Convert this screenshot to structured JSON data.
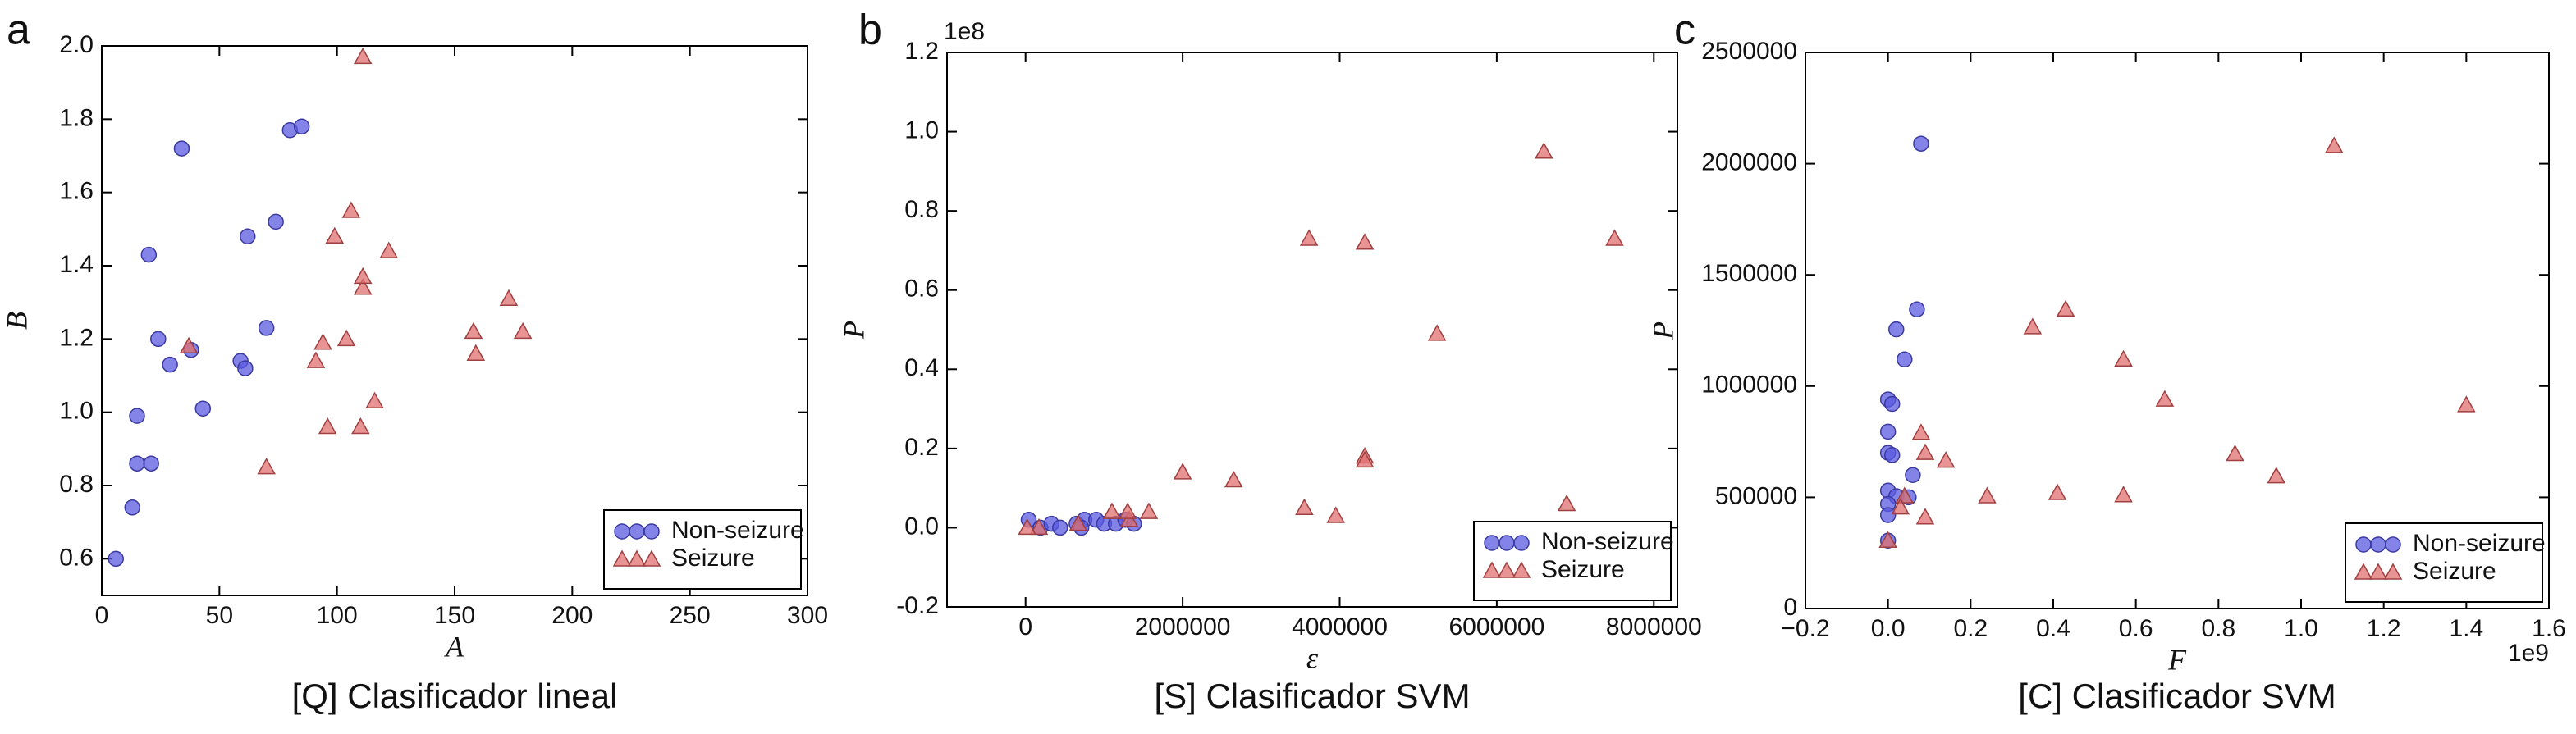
{
  "chart_data": [
    {
      "type": "scatter",
      "panel_label": "a",
      "caption": "[Q] Clasificador lineal",
      "xlabel": "A",
      "ylabel": "B",
      "xlim": [
        0,
        300
      ],
      "ylim": [
        0.5,
        2.0
      ],
      "xticks": [
        0,
        50,
        100,
        150,
        200,
        250,
        300
      ],
      "yticks": [
        0.6,
        0.8,
        {
          "value": 1,
          "label": "1.0"
        },
        1.2,
        1.4,
        1.6,
        1.8,
        {
          "value": 2,
          "label": "2.0"
        }
      ],
      "legend": "lower right",
      "series": [
        {
          "name": "Non-seizure",
          "color": "#5a5ae0",
          "marker": "circle",
          "x": [
            6,
            13,
            15,
            15,
            21,
            20,
            24,
            29,
            34,
            38,
            43,
            59,
            61,
            62,
            70,
            74,
            80,
            85
          ],
          "y": [
            0.6,
            0.74,
            0.86,
            0.99,
            0.86,
            1.43,
            1.2,
            1.13,
            1.72,
            1.17,
            1.01,
            1.14,
            1.12,
            1.48,
            1.23,
            1.52,
            1.77,
            1.78
          ]
        },
        {
          "name": "Seizure",
          "color": "#e07070",
          "marker": "triangle",
          "x": [
            37,
            70,
            91,
            94,
            96,
            99,
            104,
            106,
            110,
            111,
            111,
            111,
            116,
            122,
            158,
            159,
            173,
            179
          ],
          "y": [
            1.18,
            0.85,
            1.14,
            1.19,
            0.96,
            1.48,
            1.2,
            1.55,
            0.96,
            1.97,
            1.34,
            1.37,
            1.03,
            1.44,
            1.22,
            1.16,
            1.31,
            1.22
          ]
        }
      ]
    },
    {
      "type": "scatter",
      "panel_label": "b",
      "caption": "[S] Clasificador SVM",
      "xlabel": "ε",
      "ylabel": "P",
      "y_offset_label": "1e8",
      "xlim": [
        -1000000,
        8300000
      ],
      "ylim": [
        -0.2,
        1.2
      ],
      "xticks": [
        0,
        2000000,
        4000000,
        6000000,
        8000000
      ],
      "yticks": [
        -0.2,
        {
          "value": 0,
          "label": "0.0"
        },
        0.2,
        0.4,
        0.6,
        0.8,
        {
          "value": 1,
          "label": "1.0"
        },
        1.2
      ],
      "legend": "lower right",
      "series": [
        {
          "name": "Non-seizure",
          "color": "#5a5ae0",
          "marker": "circle",
          "x": [
            40000,
            190000,
            330000,
            440000,
            650000,
            750000,
            900000,
            1000000,
            1150000,
            1270000,
            1380000,
            710000
          ],
          "y": [
            0.02,
            0.0,
            0.01,
            0.0,
            0.01,
            0.02,
            0.02,
            0.01,
            0.01,
            0.02,
            0.01,
            0.0
          ]
        },
        {
          "name": "Seizure",
          "color": "#e07070",
          "marker": "triangle",
          "x": [
            3610000,
            4320000,
            4320000,
            4320000,
            6600000,
            7500000,
            5240000,
            6890000,
            3550000,
            3950000,
            2650000,
            2000000,
            1570000,
            1320000,
            1300000,
            1100000,
            670000,
            170000,
            20000
          ],
          "y": [
            0.73,
            0.72,
            0.18,
            0.17,
            0.95,
            0.73,
            0.49,
            0.06,
            0.05,
            0.03,
            0.12,
            0.14,
            0.04,
            0.02,
            0.04,
            0.04,
            0.01,
            0.0,
            0.0
          ]
        }
      ]
    },
    {
      "type": "scatter",
      "panel_label": "c",
      "caption": "[C] Clasificador SVM",
      "xlabel": "F",
      "ylabel": "P",
      "x_offset_label": "1e9",
      "xlim": [
        -0.2,
        1.6
      ],
      "ylim": [
        0,
        2500000
      ],
      "xticks": [
        {
          "value": -0.2,
          "label": "−0.2"
        },
        {
          "value": 0,
          "label": "0.0"
        },
        0.2,
        0.4,
        0.6,
        0.8,
        {
          "value": 1,
          "label": "1.0"
        },
        1.2,
        1.4,
        1.6
      ],
      "yticks": [
        0,
        500000,
        1000000,
        1500000,
        2000000,
        2500000
      ],
      "legend": "lower right",
      "series": [
        {
          "name": "Non-seizure",
          "color": "#5a5ae0",
          "marker": "circle",
          "x": [
            0.08,
            0.07,
            0.02,
            0.04,
            0.0,
            0.01,
            0.0,
            0.0,
            0.01,
            0.06,
            0.0,
            0.02,
            0.05,
            0.0,
            0.0,
            0.0
          ],
          "y": [
            2090000,
            1345000,
            1255000,
            1120000,
            940000,
            920000,
            795000,
            700000,
            690000,
            600000,
            530000,
            505000,
            500000,
            470000,
            420000,
            305000
          ]
        },
        {
          "name": "Seizure",
          "color": "#e07070",
          "marker": "triangle",
          "x": [
            0.35,
            0.43,
            0.57,
            0.67,
            1.08,
            1.4,
            0.84,
            0.94,
            0.57,
            0.41,
            0.24,
            0.14,
            0.09,
            0.08,
            0.09,
            0.04,
            0.03,
            0.0
          ],
          "y": [
            1265000,
            1345000,
            1120000,
            940000,
            2080000,
            915000,
            695000,
            595000,
            510000,
            520000,
            505000,
            665000,
            700000,
            790000,
            410000,
            505000,
            455000,
            305000
          ]
        }
      ]
    }
  ]
}
